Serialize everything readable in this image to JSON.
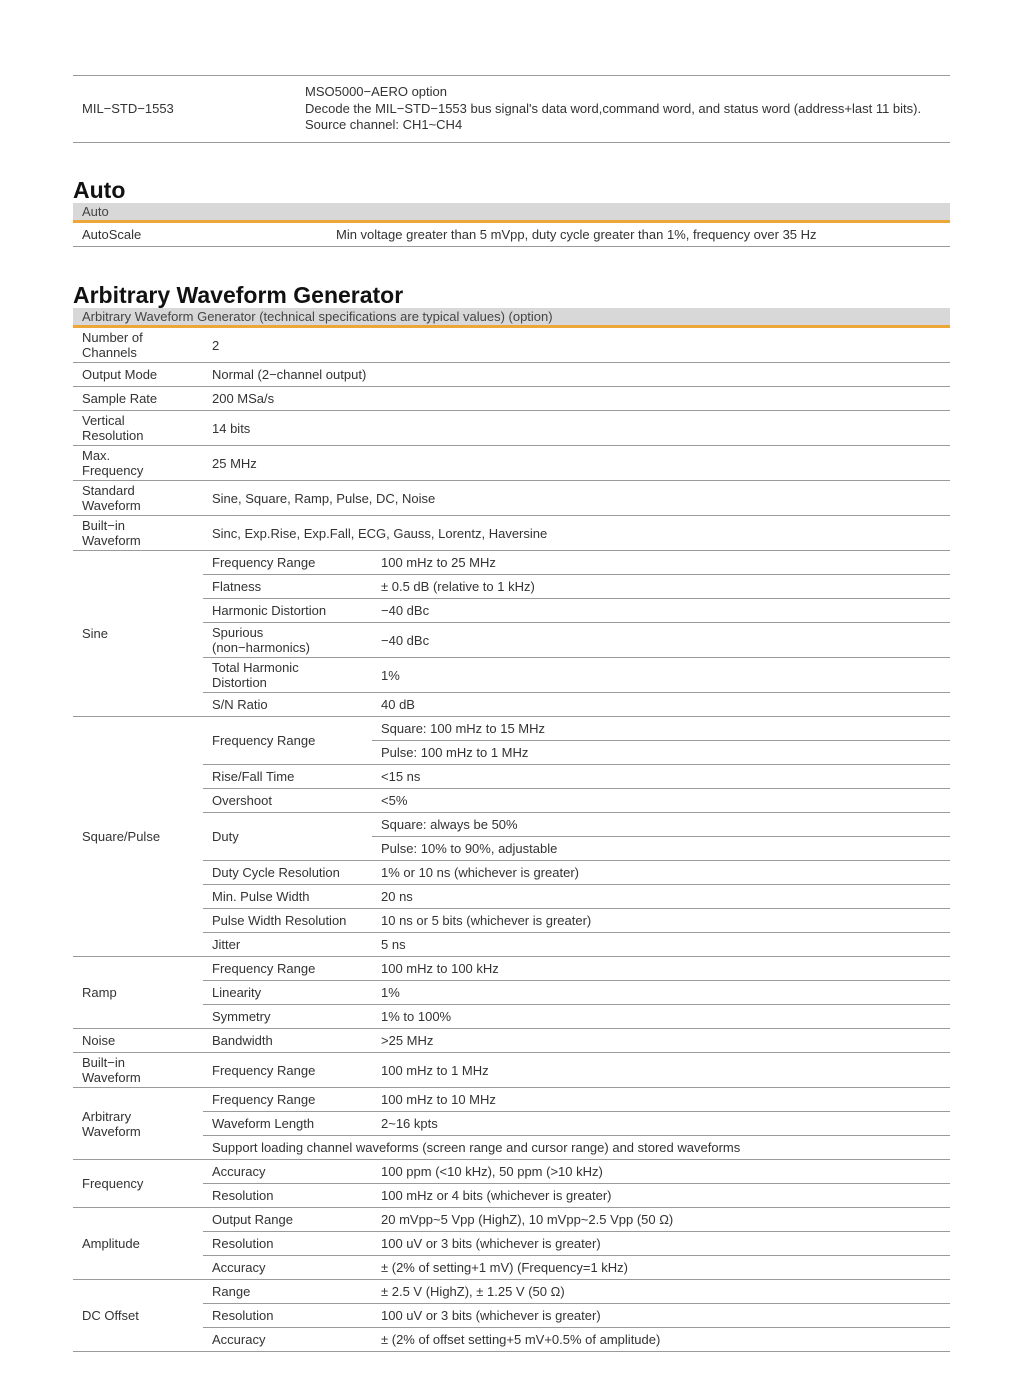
{
  "bus_decode": {
    "label": "MIL−STD−1553",
    "lines": [
      "MSO5000−AERO option",
      "Decode the MIL−STD−1553 bus signal's data word,command word, and status word (address+last 11 bits).",
      "Source channel: CH1~CH4"
    ]
  },
  "auto": {
    "heading": "Auto",
    "bar": "Auto",
    "rows": [
      {
        "label": "AutoScale",
        "value": "Min voltage greater than 5 mVpp, duty cycle greater than 1%, frequency over 35 Hz"
      }
    ]
  },
  "awg": {
    "heading": "Arbitrary Waveform Generator",
    "bar": "Arbitrary Waveform Generator (technical specifications are typical values) (option)",
    "rows": [
      {
        "label": "Number of Channels",
        "value": "2"
      },
      {
        "label": "Output Mode",
        "value": "Normal (2−channel output)"
      },
      {
        "label": "Sample Rate",
        "value": "200 MSa/s"
      },
      {
        "label": "Vertical Resolution",
        "value": "14 bits"
      },
      {
        "label": "Max. Frequency",
        "value": "25 MHz"
      },
      {
        "label": "Standard Waveform",
        "value": "Sine, Square, Ramp, Pulse, DC, Noise"
      },
      {
        "label": "Built−in Waveform",
        "value": "Sinc, Exp.Rise, Exp.Fall, ECG, Gauss, Lorentz, Haversine"
      },
      {
        "label": "Sine",
        "items": [
          {
            "name": "Frequency Range",
            "value": "100 mHz to 25 MHz"
          },
          {
            "name": "Flatness",
            "value": "± 0.5 dB (relative to 1 kHz)"
          },
          {
            "name": "Harmonic Distortion",
            "value": "−40 dBc"
          },
          {
            "name": "Spurious (non−harmonics)",
            "value": "−40 dBc"
          },
          {
            "name": "Total Harmonic Distortion",
            "value": "1%"
          },
          {
            "name": "S/N Ratio",
            "value": "40 dB"
          }
        ]
      },
      {
        "label": "Square/Pulse",
        "items": [
          {
            "name": "Frequency Range",
            "values": [
              "Square: 100 mHz to 15 MHz",
              "Pulse: 100 mHz to 1 MHz"
            ]
          },
          {
            "name": "Rise/Fall Time",
            "value": "<15 ns"
          },
          {
            "name": "Overshoot",
            "value": "<5%"
          },
          {
            "name": "Duty",
            "values": [
              "Square: always be 50%",
              "Pulse: 10% to 90%, adjustable"
            ]
          },
          {
            "name": "Duty Cycle Resolution",
            "value": "1% or 10 ns (whichever is greater)"
          },
          {
            "name": "Min. Pulse Width",
            "value": "20 ns"
          },
          {
            "name": "Pulse Width Resolution",
            "value": "10 ns or 5 bits (whichever is greater)"
          },
          {
            "name": "Jitter",
            "value": "5 ns"
          }
        ]
      },
      {
        "label": "Ramp",
        "items": [
          {
            "name": "Frequency Range",
            "value": "100 mHz to 100 kHz"
          },
          {
            "name": "Linearity",
            "value": "1%"
          },
          {
            "name": "Symmetry",
            "value": "1% to 100%"
          }
        ]
      },
      {
        "label": "Noise",
        "items": [
          {
            "name": "Bandwidth",
            "value": ">25 MHz"
          }
        ]
      },
      {
        "label": "Built−in Waveform",
        "items": [
          {
            "name": "Frequency Range",
            "value": "100 mHz to 1 MHz"
          }
        ]
      },
      {
        "label": "Arbitrary Waveform",
        "items": [
          {
            "name": "Frequency Range",
            "value": "100 mHz to 10 MHz"
          },
          {
            "name": "Waveform Length",
            "value": "2~16 kpts"
          }
        ],
        "note": "Support loading channel waveforms (screen range and cursor range) and stored waveforms"
      },
      {
        "label": "Frequency",
        "items": [
          {
            "name": "Accuracy",
            "value": "100 ppm (<10 kHz), 50 ppm (>10 kHz)"
          },
          {
            "name": "Resolution",
            "value": "100 mHz or 4 bits (whichever is greater)"
          }
        ]
      },
      {
        "label": "Amplitude",
        "items": [
          {
            "name": "Output Range",
            "value": "20 mVpp~5 Vpp (HighZ), 10 mVpp~2.5 Vpp (50 Ω)"
          },
          {
            "name": "Resolution",
            "value": "100 uV or 3 bits (whichever is greater)"
          },
          {
            "name": "Accuracy",
            "value": "± (2% of setting+1 mV) (Frequency=1 kHz)"
          }
        ]
      },
      {
        "label": "DC Offset",
        "items": [
          {
            "name": "Range",
            "value": "± 2.5 V (HighZ), ± 1.25 V (50 Ω)"
          },
          {
            "name": "Resolution",
            "value": "100 uV or 3 bits (whichever is greater)"
          },
          {
            "name": "Accuracy",
            "value": "± (2% of offset setting+5 mV+0.5% of amplitude)"
          }
        ]
      }
    ]
  }
}
